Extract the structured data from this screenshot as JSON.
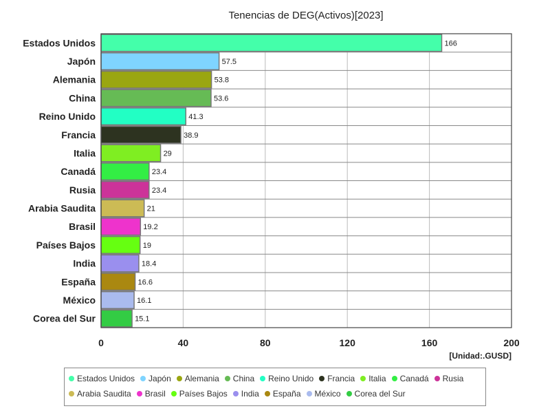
{
  "chart_data": {
    "type": "bar",
    "orientation": "horizontal",
    "title": "Tenencias de DEG(Activos)[2023]",
    "unit_label": "[Unidad:.GUSD]",
    "categories": [
      "Estados Unidos",
      "Japón",
      "Alemania",
      "China",
      "Reino Unido",
      "Francia",
      "Italia",
      "Canadá",
      "Rusia",
      "Arabia Saudita",
      "Brasil",
      "Países Bajos",
      "India",
      "España",
      "México",
      "Corea del Sur"
    ],
    "values": [
      166,
      57.5,
      53.8,
      53.6,
      41.3,
      38.9,
      29,
      23.4,
      23.4,
      21,
      19.2,
      19,
      18.4,
      16.6,
      16.1,
      15.1
    ],
    "value_labels": [
      "166",
      "57.5",
      "53.8",
      "53.6",
      "41.3",
      "38.9",
      "29",
      "23.4",
      "23.4",
      "21",
      "19.2",
      "19",
      "18.4",
      "16.6",
      "16.1",
      "15.1"
    ],
    "colors": [
      "#44ffaa",
      "#7fd4ff",
      "#9aa611",
      "#66bb55",
      "#22ffc4",
      "#2d3320",
      "#7fee22",
      "#33ee44",
      "#cc3399",
      "#ccbb55",
      "#ee33cc",
      "#66ff11",
      "#9a8fee",
      "#aa8811",
      "#aabbee",
      "#33cc44"
    ],
    "xlim": [
      0,
      200
    ],
    "xticks": [
      "0",
      "40",
      "80",
      "120",
      "160",
      "200"
    ],
    "grid": true,
    "legend_position": "bottom"
  }
}
